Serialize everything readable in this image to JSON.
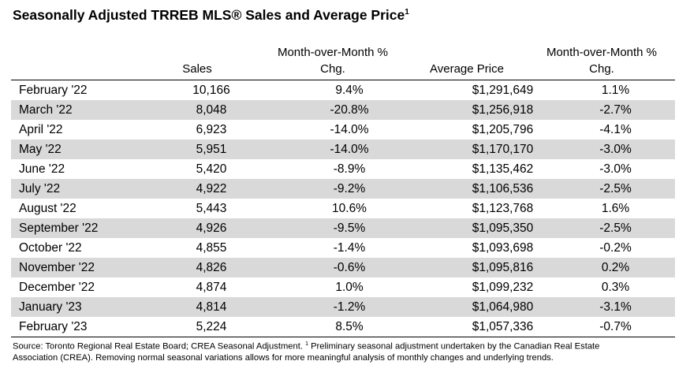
{
  "title": "Seasonally Adjusted TRREB MLS® Sales and Average Price",
  "title_superscript": "1",
  "headers": {
    "sales": "Sales",
    "mom_sales_line1": "Month-over-Month %",
    "mom_sales_line2": "Chg.",
    "average_price": "Average Price",
    "mom_price_line1": "Month-over-Month %",
    "mom_price_line2": "Chg."
  },
  "rows": [
    {
      "month": "February '22",
      "sales": "10,166",
      "sales_chg": "9.4%",
      "avg_price": "$1,291,649",
      "price_chg": "1.1%"
    },
    {
      "month": "March '22",
      "sales": "8,048",
      "sales_chg": "-20.8%",
      "avg_price": "$1,256,918",
      "price_chg": "-2.7%"
    },
    {
      "month": "April '22",
      "sales": "6,923",
      "sales_chg": "-14.0%",
      "avg_price": "$1,205,796",
      "price_chg": "-4.1%"
    },
    {
      "month": "May '22",
      "sales": "5,951",
      "sales_chg": "-14.0%",
      "avg_price": "$1,170,170",
      "price_chg": "-3.0%"
    },
    {
      "month": "June '22",
      "sales": "5,420",
      "sales_chg": "-8.9%",
      "avg_price": "$1,135,462",
      "price_chg": "-3.0%"
    },
    {
      "month": "July '22",
      "sales": "4,922",
      "sales_chg": "-9.2%",
      "avg_price": "$1,106,536",
      "price_chg": "-2.5%"
    },
    {
      "month": "August '22",
      "sales": "5,443",
      "sales_chg": "10.6%",
      "avg_price": "$1,123,768",
      "price_chg": "1.6%"
    },
    {
      "month": "September '22",
      "sales": "4,926",
      "sales_chg": "-9.5%",
      "avg_price": "$1,095,350",
      "price_chg": "-2.5%"
    },
    {
      "month": "October '22",
      "sales": "4,855",
      "sales_chg": "-1.4%",
      "avg_price": "$1,093,698",
      "price_chg": "-0.2%"
    },
    {
      "month": "November '22",
      "sales": "4,826",
      "sales_chg": "-0.6%",
      "avg_price": "$1,095,816",
      "price_chg": "0.2%"
    },
    {
      "month": "December '22",
      "sales": "4,874",
      "sales_chg": "1.0%",
      "avg_price": "$1,099,232",
      "price_chg": "0.3%"
    },
    {
      "month": "January '23",
      "sales": "4,814",
      "sales_chg": "-1.2%",
      "avg_price": "$1,064,980",
      "price_chg": "-3.1%"
    },
    {
      "month": "February '23",
      "sales": "5,224",
      "sales_chg": "8.5%",
      "avg_price": "$1,057,336",
      "price_chg": "-0.7%"
    }
  ],
  "footnote": {
    "line1_source": "Source: Toronto Regional Real Estate Board; CREA Seasonal Adjustment. ",
    "line1_sup": "1",
    "line1_rest": " Preliminary seasonal adjustment undertaken by the Canadian Real Estate",
    "line2": "Association (CREA).  Removing normal seasonal variations allows for more meaningful analysis of monthly changes and underlying trends."
  },
  "colors": {
    "stripe": "#d9d9d9",
    "text": "#000000",
    "background": "#ffffff"
  }
}
